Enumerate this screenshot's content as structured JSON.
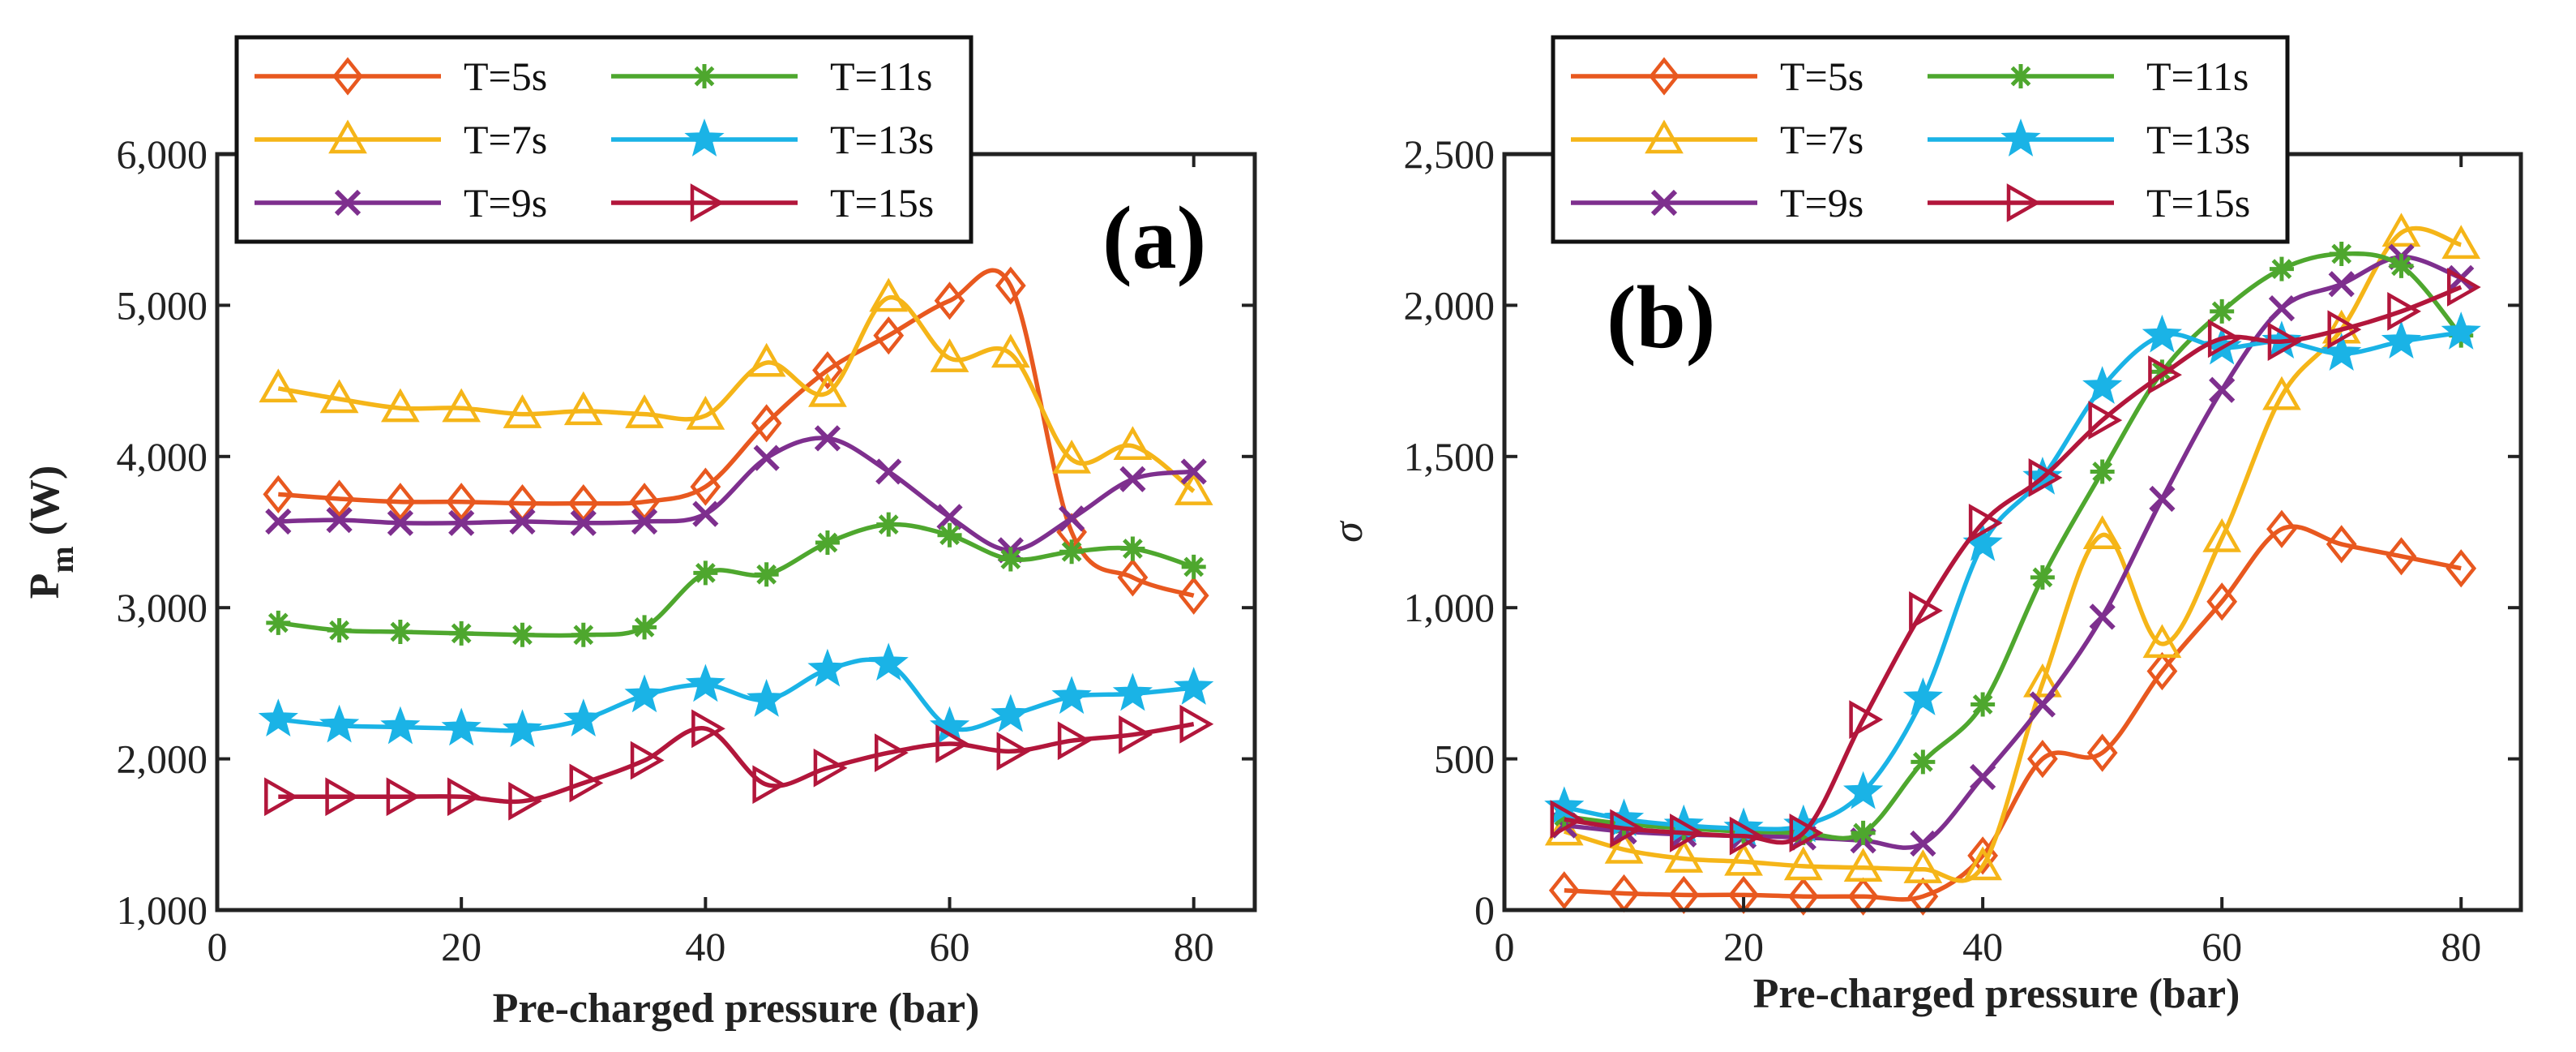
{
  "colors": {
    "T5": "#e8581f",
    "T7": "#f5b518",
    "T9": "#7e2f8e",
    "T11": "#4ea72e",
    "T13": "#1ab3e6",
    "T15": "#b2163b",
    "axis": "#222222"
  },
  "chart_data": [
    {
      "type": "line",
      "panel_label": "(a)",
      "xlabel": "Pre-charged pressure (bar)",
      "ylabel": "P",
      "ylabel_sub": "m",
      "ylabel_unit": " (W)",
      "xlim": [
        0,
        85
      ],
      "ylim": [
        1000,
        6000
      ],
      "xticks": [
        0,
        20,
        40,
        60,
        80
      ],
      "xtick_labels": [
        "0",
        "20",
        "40",
        "60",
        "80"
      ],
      "yticks": [
        1000,
        2000,
        3000,
        4000,
        5000,
        6000
      ],
      "ytick_labels": [
        "1,000",
        "2,000",
        "3,000",
        "4,000",
        "5,000",
        "6,000"
      ],
      "x": [
        5,
        10,
        15,
        20,
        25,
        30,
        35,
        40,
        45,
        50,
        55,
        60,
        65,
        70,
        75,
        80
      ],
      "legend_position": "top-left",
      "series": [
        {
          "name": "T=5s",
          "key": "T5",
          "marker": "diamond",
          "values": [
            3750,
            3720,
            3700,
            3700,
            3690,
            3690,
            3700,
            3800,
            4220,
            4570,
            4800,
            5030,
            5130,
            3500,
            3200,
            3080
          ]
        },
        {
          "name": "T=7s",
          "key": "T7",
          "marker": "triangle-up",
          "values": [
            4450,
            4380,
            4320,
            4320,
            4280,
            4300,
            4280,
            4270,
            4620,
            4420,
            5050,
            4650,
            4680,
            3980,
            4070,
            3770
          ]
        },
        {
          "name": "T=9s",
          "key": "T9",
          "marker": "x",
          "values": [
            3570,
            3580,
            3560,
            3560,
            3570,
            3560,
            3570,
            3620,
            3990,
            4120,
            3900,
            3600,
            3380,
            3590,
            3850,
            3900
          ]
        },
        {
          "name": "T=11s",
          "key": "T11",
          "marker": "asterisk",
          "values": [
            2900,
            2850,
            2840,
            2830,
            2820,
            2820,
            2870,
            3230,
            3220,
            3430,
            3550,
            3480,
            3320,
            3370,
            3390,
            3270
          ]
        },
        {
          "name": "T=13s",
          "key": "T13",
          "marker": "star",
          "values": [
            2260,
            2220,
            2210,
            2200,
            2190,
            2260,
            2420,
            2490,
            2390,
            2590,
            2630,
            2210,
            2290,
            2410,
            2430,
            2470
          ]
        },
        {
          "name": "T=15s",
          "key": "T15",
          "marker": "triangle-right",
          "values": [
            1750,
            1750,
            1750,
            1750,
            1720,
            1840,
            1990,
            2200,
            1830,
            1940,
            2040,
            2100,
            2050,
            2120,
            2160,
            2230
          ]
        }
      ]
    },
    {
      "type": "line",
      "panel_label": "(b)",
      "xlabel": "Pre-charged pressure (bar)",
      "ylabel": "σ",
      "xlim": [
        0,
        85
      ],
      "ylim": [
        0,
        2500
      ],
      "xticks": [
        0,
        20,
        40,
        60,
        80
      ],
      "xtick_labels": [
        "0",
        "20",
        "40",
        "60",
        "80"
      ],
      "yticks": [
        0,
        500,
        1000,
        1500,
        2000,
        2500
      ],
      "ytick_labels": [
        "0",
        "500",
        "1,000",
        "1,500",
        "2,000",
        "2,500"
      ],
      "x": [
        5,
        10,
        15,
        20,
        25,
        30,
        35,
        40,
        45,
        50,
        55,
        60,
        65,
        70,
        75,
        80
      ],
      "legend_position": "top-left",
      "series": [
        {
          "name": "T=5s",
          "key": "T5",
          "marker": "diamond",
          "values": [
            65,
            55,
            50,
            50,
            45,
            45,
            45,
            180,
            500,
            520,
            790,
            1020,
            1260,
            1210,
            1170,
            1130
          ]
        },
        {
          "name": "T=7s",
          "key": "T7",
          "marker": "triangle-up",
          "values": [
            260,
            200,
            170,
            160,
            145,
            140,
            135,
            145,
            750,
            1240,
            880,
            1230,
            1700,
            1920,
            2240,
            2200
          ]
        },
        {
          "name": "T=9s",
          "key": "T9",
          "marker": "x",
          "values": [
            280,
            260,
            250,
            245,
            240,
            230,
            220,
            440,
            680,
            970,
            1360,
            1720,
            1990,
            2070,
            2160,
            2090
          ]
        },
        {
          "name": "T=11s",
          "key": "T11",
          "marker": "asterisk",
          "values": [
            310,
            285,
            270,
            260,
            255,
            255,
            490,
            680,
            1100,
            1450,
            1780,
            1980,
            2120,
            2170,
            2130,
            1900
          ]
        },
        {
          "name": "T=13s",
          "key": "T13",
          "marker": "star",
          "values": [
            340,
            300,
            280,
            270,
            280,
            390,
            700,
            1210,
            1430,
            1730,
            1900,
            1860,
            1880,
            1840,
            1880,
            1910
          ]
        },
        {
          "name": "T=15s",
          "key": "T15",
          "marker": "triangle-right",
          "values": [
            300,
            270,
            255,
            245,
            255,
            630,
            990,
            1280,
            1430,
            1620,
            1770,
            1890,
            1880,
            1920,
            1980,
            2060
          ]
        }
      ]
    }
  ]
}
